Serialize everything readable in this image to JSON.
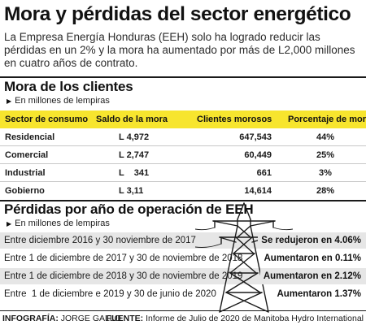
{
  "header": {
    "title": "Mora y pérdidas del sector energético",
    "lede": "La Empresa Energía Honduras (EEH) solo ha logrado reducir las pérdidas en un 2% y la mora ha aumentado por más de L2,000 millones en cuatro años de contrato."
  },
  "mora": {
    "section_title": "Mora de los clientes",
    "subtitle": "En millones de lempiras",
    "columns": [
      "Sector de consumo",
      "Saldo de la mora",
      "Clientes morosos",
      "Porcentaje de mora"
    ],
    "rows": [
      {
        "sector": "Residencial",
        "saldo": "L 4,972",
        "clientes": "647,543",
        "porcentaje": "44%"
      },
      {
        "sector": "Comercial",
        "saldo": "L 2,747",
        "clientes": "60,449",
        "porcentaje": "25%"
      },
      {
        "sector": "Industrial",
        "saldo": "L    341",
        "clientes": "661",
        "porcentaje": "3%"
      },
      {
        "sector": "Gobierno",
        "saldo": "L 3,11",
        "clientes": "14,614",
        "porcentaje": "28%"
      }
    ]
  },
  "perdidas": {
    "section_title": "Pérdidas por año de operación de EEH",
    "subtitle": "En millones de lempiras",
    "rows": [
      {
        "period": "Entre diciembre 2016 y 30 noviembre de 2017",
        "result": "Se redujeron en 4.06%"
      },
      {
        "period": "Entre 1 de diciembre de 2017 y 30 de noviembre de 2018",
        "result": "Aumentaron en 0.11%"
      },
      {
        "period": "Entre 1 de diciembre de 2018 y 30 de noviembre de 2019",
        "result": "Aumentaron en 2.12%"
      },
      {
        "period": "Entre  1 de diciembre e 2019 y 30 de junio de 2020",
        "result": "Aumentaron 1.37%"
      }
    ]
  },
  "footer": {
    "infografia_label": "INFOGRAFÍA:",
    "infografia_value": " JORGE GALLO",
    "fuente_label": "FUENTE:",
    "fuente_value": " Informe de Julio de 2020 de Manitoba Hydro International"
  },
  "icons": {
    "arrow": "triangle-right-icon",
    "tower": "transmission-tower-icon"
  },
  "colors": {
    "header_yellow": "#f7e52e",
    "row_shade": "#e6e6e6"
  }
}
